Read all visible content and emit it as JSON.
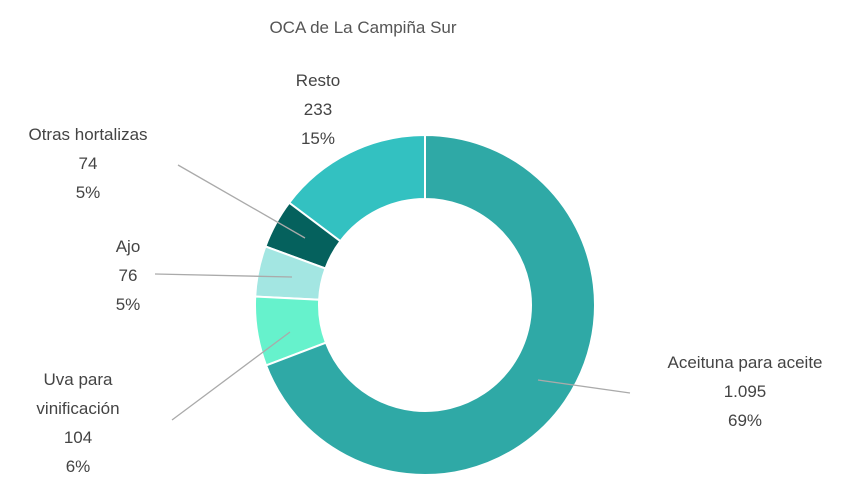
{
  "chart_data": {
    "type": "donut",
    "title": "OCA de La Campiña Sur",
    "categories": [
      "Aceituna para aceite",
      "Uva para vinificación",
      "Ajo",
      "Otras hortalizas",
      "Resto"
    ],
    "values": [
      1095,
      104,
      76,
      74,
      233
    ],
    "value_labels": [
      "1.095",
      "104",
      "76",
      "74",
      "233"
    ],
    "percent_labels": [
      "69%",
      "6%",
      "5%",
      "5%",
      "15%"
    ],
    "colors": [
      "#2fa9a6",
      "#66f2cc",
      "#a3e6e2",
      "#05615d",
      "#33c1c1"
    ]
  }
}
